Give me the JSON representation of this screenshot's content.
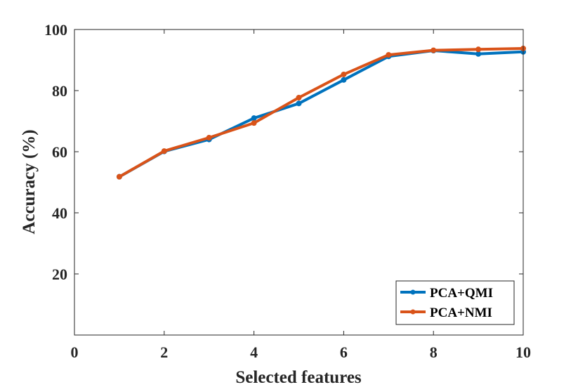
{
  "chart_data": {
    "type": "line",
    "title": "",
    "xlabel": "Selected features",
    "ylabel": "Accuracy (%)",
    "xlim": [
      0,
      10
    ],
    "ylim": [
      0,
      100
    ],
    "xticks": [
      0,
      2,
      4,
      6,
      8,
      10
    ],
    "yticks": [
      20,
      40,
      60,
      80,
      100
    ],
    "grid": false,
    "legend_position": "bottom-right",
    "x": [
      1,
      2,
      3,
      4,
      5,
      6,
      7,
      8,
      9,
      10
    ],
    "series": [
      {
        "name": "PCA+QMI",
        "color": "#0072BD",
        "values": [
          51.8,
          60.1,
          64.0,
          71.0,
          75.8,
          83.5,
          91.2,
          93.1,
          92.0,
          92.7
        ]
      },
      {
        "name": "PCA+NMI",
        "color": "#D95319",
        "values": [
          51.8,
          60.2,
          64.6,
          69.4,
          77.7,
          85.3,
          91.7,
          93.2,
          93.5,
          93.8
        ]
      }
    ]
  }
}
